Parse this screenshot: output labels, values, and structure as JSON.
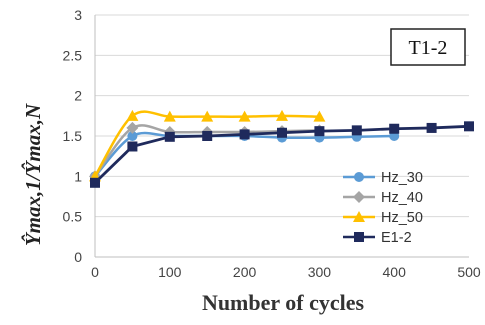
{
  "chart_data": {
    "type": "line",
    "panel_label": "T1-2",
    "xlabel": "Number of cycles",
    "ylabel": "Ŷmax,1/Ŷmax,N",
    "xlim": [
      0,
      500
    ],
    "ylim": [
      0,
      3
    ],
    "x_ticks": [
      "0",
      "100",
      "200",
      "300",
      "400",
      "500"
    ],
    "y_ticks": [
      "0",
      "0.5",
      "1",
      "1.5",
      "2",
      "2.5",
      "3"
    ],
    "grid": "horizontal",
    "legend_position": "bottom-right",
    "series": [
      {
        "name": "Hz_30",
        "color": "#5b9bd5",
        "marker": "circle",
        "smooth": true,
        "x": [
          0,
          50,
          100,
          150,
          200,
          250,
          300,
          350,
          400
        ],
        "y": [
          1.0,
          1.5,
          1.5,
          1.5,
          1.5,
          1.48,
          1.48,
          1.49,
          1.5
        ]
      },
      {
        "name": "Hz_40",
        "color": "#a5a5a5",
        "marker": "diamond",
        "smooth": true,
        "x": [
          0,
          50,
          100,
          150,
          200,
          250,
          300
        ],
        "y": [
          1.0,
          1.6,
          1.55,
          1.55,
          1.55,
          1.56,
          1.57
        ]
      },
      {
        "name": "Hz_50",
        "color": "#ffc000",
        "marker": "triangle",
        "smooth": true,
        "x": [
          0,
          50,
          100,
          150,
          200,
          250,
          300
        ],
        "y": [
          1.0,
          1.75,
          1.74,
          1.74,
          1.74,
          1.75,
          1.74
        ]
      },
      {
        "name": "E1-2",
        "color": "#1f2a5c",
        "marker": "square",
        "smooth": false,
        "x": [
          0,
          50,
          100,
          150,
          200,
          250,
          300,
          350,
          400,
          450,
          500
        ],
        "y": [
          0.92,
          1.37,
          1.49,
          1.5,
          1.52,
          1.54,
          1.56,
          1.57,
          1.59,
          1.6,
          1.62
        ]
      }
    ]
  }
}
